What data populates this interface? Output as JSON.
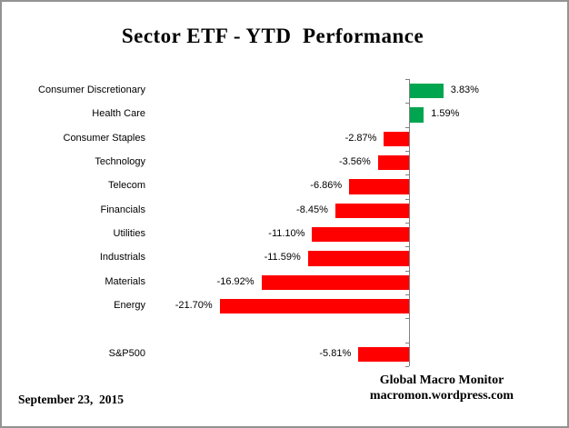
{
  "title": "Sector ETF - YTD  Performance",
  "footer": {
    "date": "September 23,  2015",
    "source_line1": "Global Macro Monitor",
    "source_line2": "macromon.wordpress.com"
  },
  "chart_data": {
    "type": "bar",
    "orientation": "horizontal",
    "title": "Sector ETF - YTD  Performance",
    "xlabel": "",
    "ylabel": "",
    "xlim": [
      -25,
      10
    ],
    "grid": false,
    "legend": "none",
    "value_label_position": "outside-end",
    "positive_color": "#00A550",
    "negative_color": "#FF0000",
    "axis_color": "#808080",
    "entries": [
      {
        "category": "Consumer Discretionary",
        "value": 3.83,
        "label": "3.83%"
      },
      {
        "category": "Health Care",
        "value": 1.59,
        "label": "1.59%"
      },
      {
        "category": "Consumer Staples",
        "value": -2.87,
        "label": "-2.87%"
      },
      {
        "category": "Technology",
        "value": -3.56,
        "label": "-3.56%"
      },
      {
        "category": "Telecom",
        "value": -6.86,
        "label": "-6.86%"
      },
      {
        "category": "Financials",
        "value": -8.45,
        "label": "-8.45%"
      },
      {
        "category": "Utilities",
        "value": -11.1,
        "label": "-11.10%"
      },
      {
        "category": "Industrials",
        "value": -11.59,
        "label": "-11.59%"
      },
      {
        "category": "Materials",
        "value": -16.92,
        "label": "-16.92%"
      },
      {
        "category": "Energy",
        "value": -21.7,
        "label": "-21.70%"
      },
      {
        "category": "",
        "value": null,
        "label": ""
      },
      {
        "category": "S&P500",
        "value": -5.81,
        "label": "-5.81%"
      }
    ]
  }
}
